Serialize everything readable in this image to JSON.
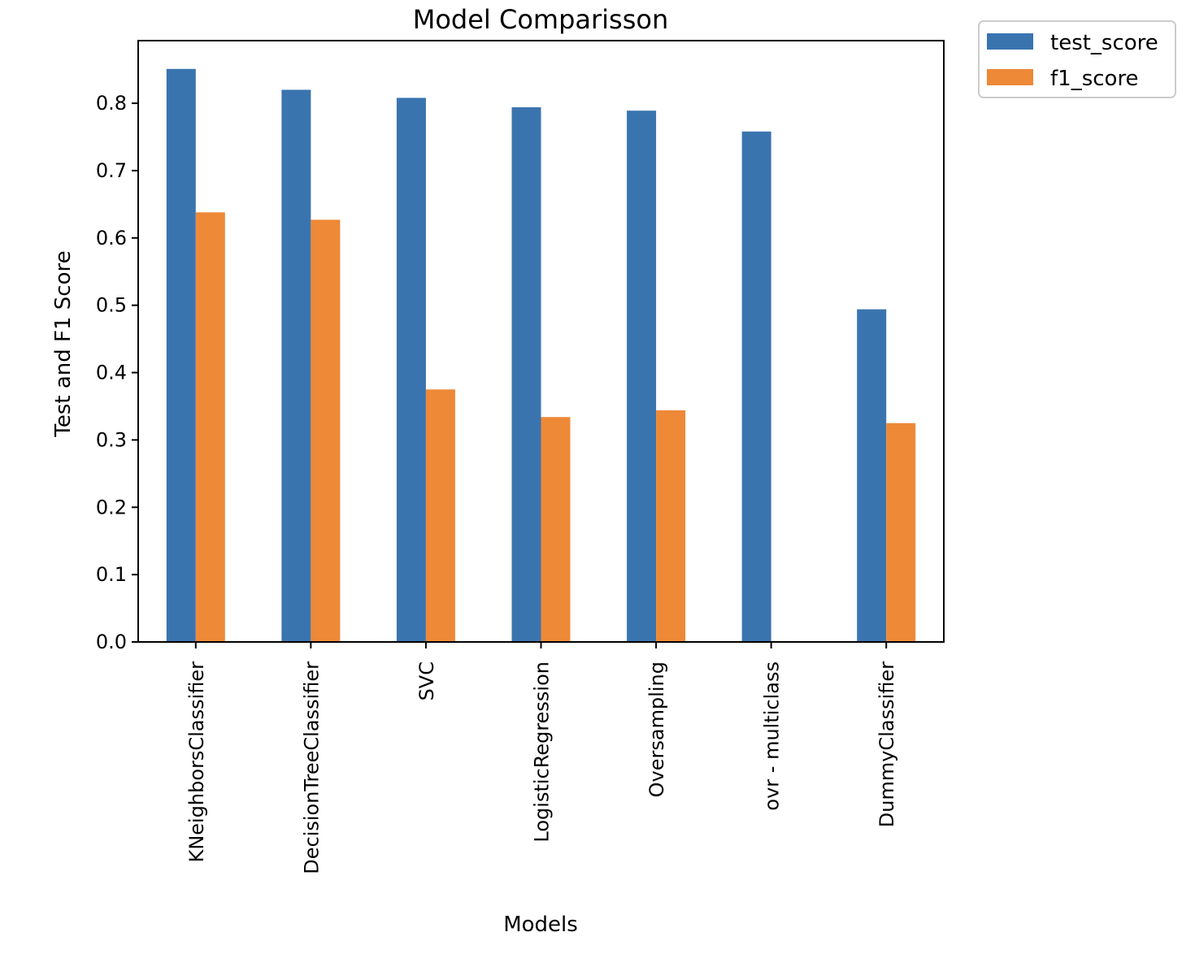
{
  "chart_data": {
    "type": "bar",
    "title": "Model Comparisson",
    "xlabel": "Models",
    "ylabel": "Test and F1 Score",
    "categories": [
      "KNeighborsClassifier",
      "DecisionTreeClassifier",
      "SVC",
      "LogisticRegression",
      "Oversampling",
      "ovr - multiclass",
      "DummyClassifier"
    ],
    "series": [
      {
        "name": "test_score",
        "color": "#3A74AF",
        "values": [
          0.851,
          0.82,
          0.808,
          0.794,
          0.789,
          0.758,
          0.494
        ]
      },
      {
        "name": "f1_score",
        "color": "#ED8937",
        "values": [
          0.638,
          0.627,
          0.375,
          0.334,
          0.344,
          0.0,
          0.325
        ]
      }
    ],
    "yticks": [
      "0.0",
      "0.1",
      "0.2",
      "0.3",
      "0.4",
      "0.5",
      "0.6",
      "0.7",
      "0.8"
    ],
    "ylim": [
      0,
      0.893
    ],
    "grid": false,
    "legend_position": "outside top-right"
  }
}
